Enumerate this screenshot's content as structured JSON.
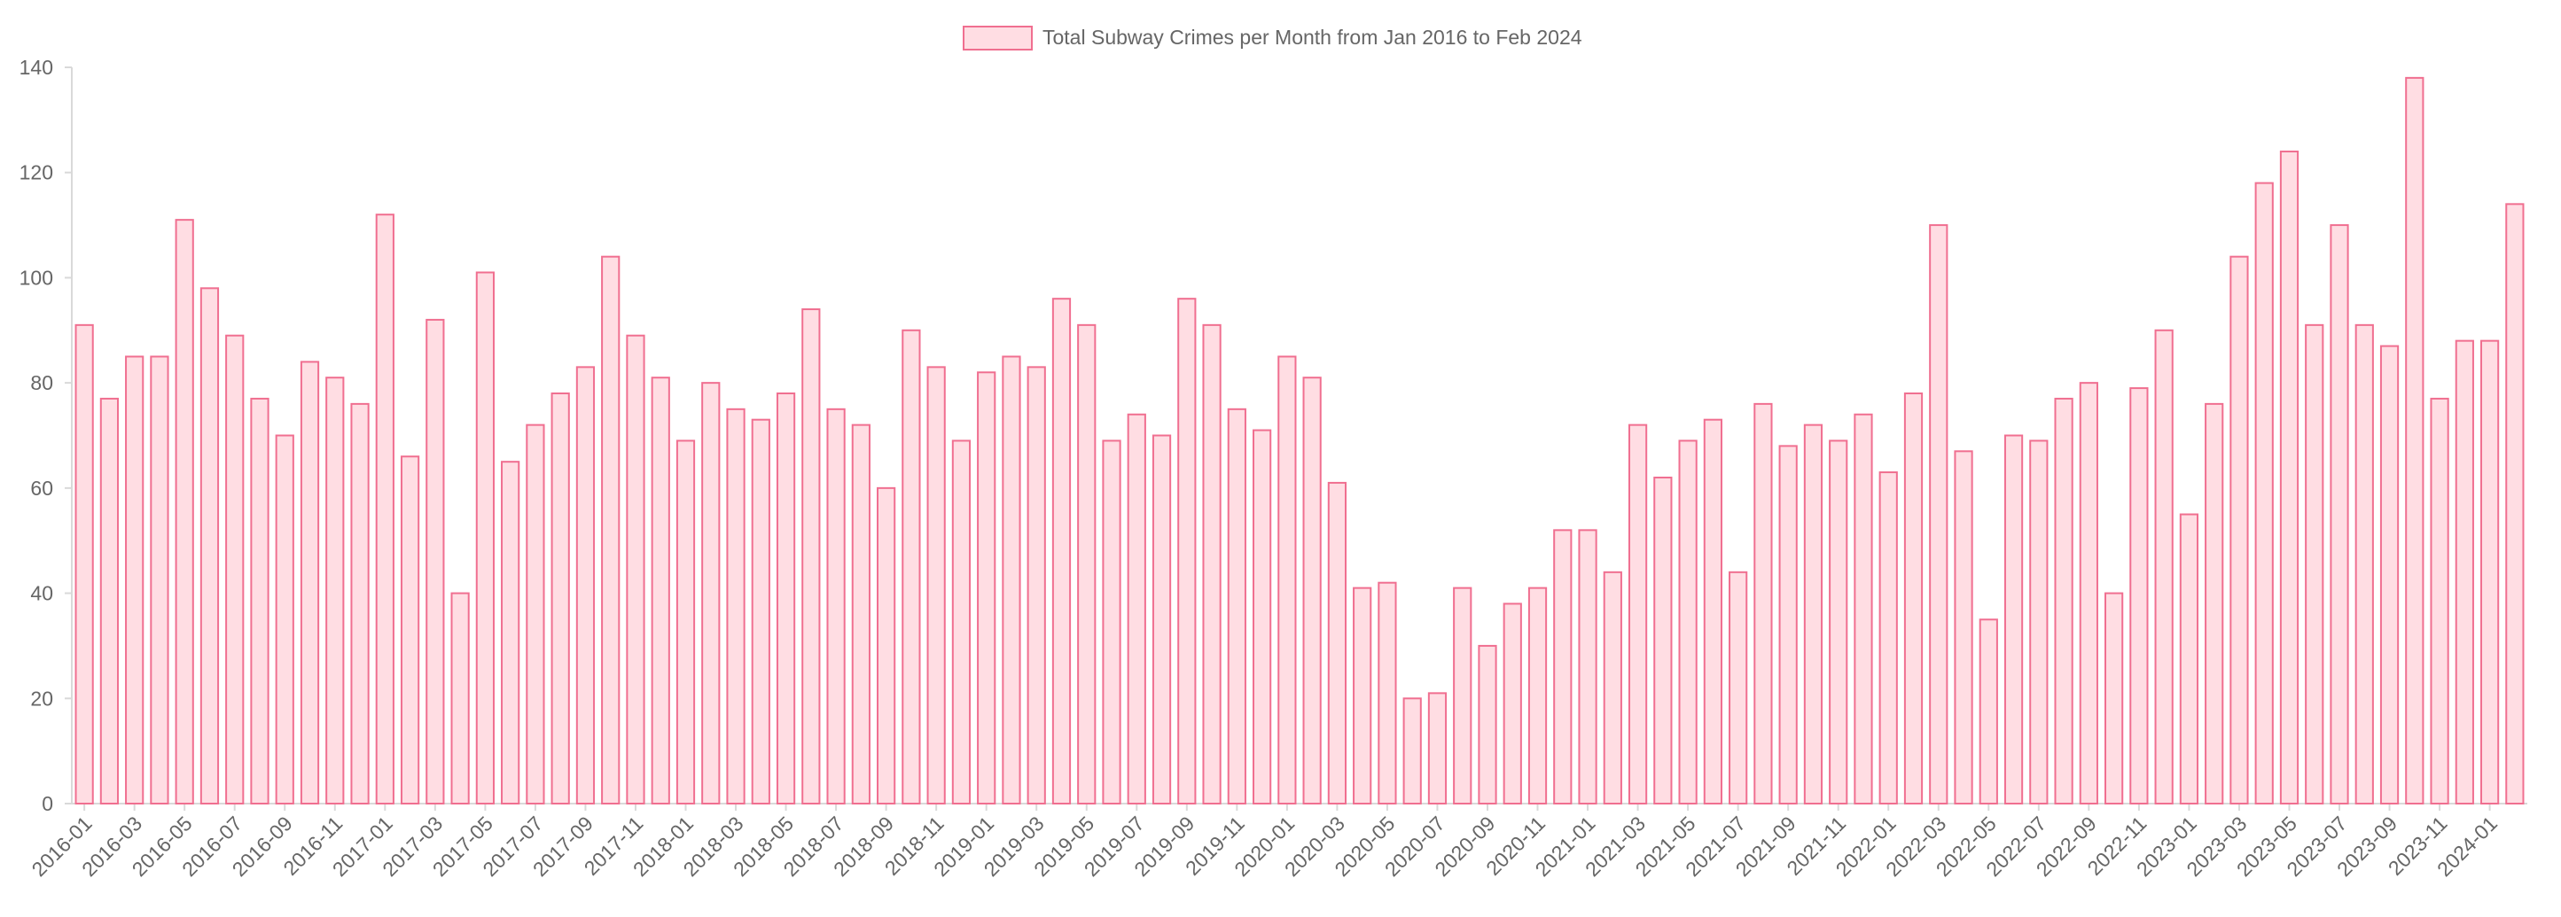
{
  "chart_data": {
    "type": "bar",
    "title": "",
    "xlabel": "",
    "ylabel": "",
    "legend": {
      "position": "top",
      "entries": [
        "Total Subway Crimes per Month from Jan 2016 to Feb 2024"
      ]
    },
    "grid": false,
    "ylim": [
      0,
      140
    ],
    "yticks": [
      0,
      20,
      40,
      60,
      80,
      100,
      120,
      140
    ],
    "colors": {
      "fill": "#ffdde3",
      "stroke": "#f06f90",
      "axis": "#d9d9d9",
      "text": "#666666"
    },
    "categories": [
      "2016-01",
      "2016-02",
      "2016-03",
      "2016-04",
      "2016-05",
      "2016-06",
      "2016-07",
      "2016-08",
      "2016-09",
      "2016-10",
      "2016-11",
      "2016-12",
      "2017-01",
      "2017-02",
      "2017-03",
      "2017-04",
      "2017-05",
      "2017-06",
      "2017-07",
      "2017-08",
      "2017-09",
      "2017-10",
      "2017-11",
      "2017-12",
      "2018-01",
      "2018-02",
      "2018-03",
      "2018-04",
      "2018-05",
      "2018-06",
      "2018-07",
      "2018-08",
      "2018-09",
      "2018-10",
      "2018-11",
      "2018-12",
      "2019-01",
      "2019-02",
      "2019-03",
      "2019-04",
      "2019-05",
      "2019-06",
      "2019-07",
      "2019-08",
      "2019-09",
      "2019-10",
      "2019-11",
      "2019-12",
      "2020-01",
      "2020-02",
      "2020-03",
      "2020-04",
      "2020-05",
      "2020-06",
      "2020-07",
      "2020-08",
      "2020-09",
      "2020-10",
      "2020-11",
      "2020-12",
      "2021-01",
      "2021-02",
      "2021-03",
      "2021-04",
      "2021-05",
      "2021-06",
      "2021-07",
      "2021-08",
      "2021-09",
      "2021-10",
      "2021-11",
      "2021-12",
      "2022-01",
      "2022-02",
      "2022-03",
      "2022-04",
      "2022-05",
      "2022-06",
      "2022-07",
      "2022-08",
      "2022-09",
      "2022-10",
      "2022-11",
      "2022-12",
      "2023-01",
      "2023-02",
      "2023-03",
      "2023-04",
      "2023-05",
      "2023-06",
      "2023-07",
      "2023-08",
      "2023-09",
      "2023-10",
      "2023-11",
      "2023-12",
      "2024-01",
      "2024-02"
    ],
    "xtick_labels": [
      "2016-01",
      "2016-03",
      "2016-05",
      "2016-07",
      "2016-09",
      "2016-11",
      "2017-01",
      "2017-03",
      "2017-05",
      "2017-07",
      "2017-09",
      "2017-11",
      "2018-01",
      "2018-03",
      "2018-05",
      "2018-07",
      "2018-09",
      "2018-11",
      "2019-01",
      "2019-03",
      "2019-05",
      "2019-07",
      "2019-09",
      "2019-11",
      "2020-01",
      "2020-03",
      "2020-05",
      "2020-07",
      "2020-09",
      "2020-11",
      "2021-01",
      "2021-03",
      "2021-05",
      "2021-07",
      "2021-09",
      "2021-11",
      "2022-01",
      "2022-03",
      "2022-05",
      "2022-07",
      "2022-09",
      "2022-11",
      "2023-01",
      "2023-03",
      "2023-05",
      "2023-07",
      "2023-09",
      "2023-11",
      "2024-01"
    ],
    "series": [
      {
        "name": "Total Subway Crimes per Month from Jan 2016 to Feb 2024",
        "values": [
          91,
          77,
          85,
          85,
          111,
          98,
          89,
          77,
          70,
          84,
          81,
          76,
          112,
          66,
          92,
          40,
          101,
          65,
          72,
          78,
          83,
          104,
          89,
          81,
          69,
          80,
          75,
          73,
          78,
          94,
          75,
          72,
          60,
          90,
          83,
          69,
          82,
          85,
          83,
          96,
          91,
          69,
          74,
          70,
          96,
          91,
          75,
          71,
          85,
          81,
          61,
          41,
          42,
          20,
          21,
          41,
          30,
          38,
          41,
          52,
          52,
          44,
          72,
          62,
          69,
          73,
          44,
          76,
          68,
          72,
          69,
          74,
          63,
          78,
          110,
          67,
          35,
          70,
          69,
          77,
          80,
          40,
          79,
          90,
          55,
          76,
          104,
          118,
          124,
          91,
          110,
          91,
          87,
          138,
          77,
          88,
          88,
          114
        ]
      }
    ]
  }
}
